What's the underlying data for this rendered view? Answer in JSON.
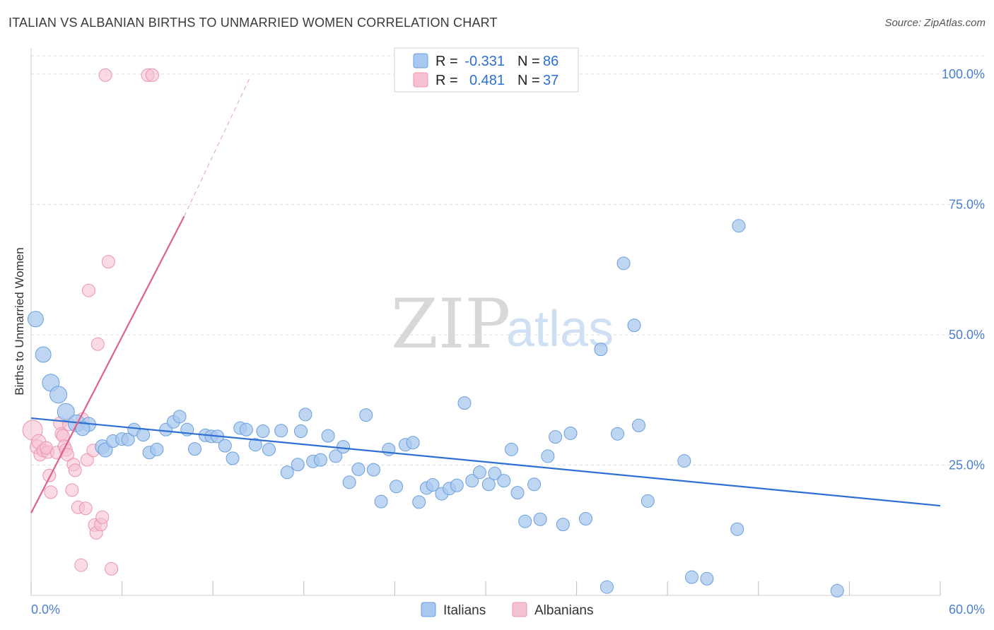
{
  "title": "ITALIAN VS ALBANIAN BIRTHS TO UNMARRIED WOMEN CORRELATION CHART",
  "source": "Source: ZipAtlas.com",
  "watermark": {
    "zip": "ZIP",
    "atlas": "atlas"
  },
  "colors": {
    "italians_fill": "#a9c8ef",
    "italians_stroke": "#6a9fdf",
    "italians_line": "#2d6fd2",
    "albanians_fill": "#f6c2d2",
    "albanians_stroke": "#ec94b0",
    "albanians_line": "#e0608a",
    "tick_text": "#4a7fd0",
    "grid": "#dddddd"
  },
  "legend": {
    "rows": [
      {
        "r_label": "R =",
        "r_value": "-0.331",
        "n_label": "N =",
        "n_value": "86"
      },
      {
        "r_label": "R =",
        "r_value": "0.481",
        "n_label": "N =",
        "n_value": "37"
      }
    ]
  },
  "chart_data": {
    "type": "scatter",
    "xlabel": "",
    "ylabel": "Births to Unmarried Women",
    "xlim": [
      0,
      60
    ],
    "ylim": [
      0,
      105
    ],
    "x_tick_labels": [
      "0.0%",
      "60.0%"
    ],
    "y_ticks": [
      25,
      50,
      75,
      100
    ],
    "y_tick_labels": [
      "25.0%",
      "50.0%",
      "75.0%",
      "100.0%"
    ],
    "grid": true,
    "legend_position": "top-center",
    "series": [
      {
        "name": "Italians",
        "trend": {
          "x0": 0,
          "y0": 34.0,
          "x1": 60,
          "y1": 17.2
        },
        "points": [
          [
            0.3,
            53.0,
            11
          ],
          [
            0.8,
            46.2,
            11
          ],
          [
            1.3,
            40.8,
            12
          ],
          [
            1.8,
            38.5,
            12
          ],
          [
            2.3,
            35.2,
            12
          ],
          [
            3.0,
            33.0,
            12
          ],
          [
            3.8,
            32.8,
            10
          ],
          [
            3.4,
            32.0,
            10
          ],
          [
            4.7,
            28.5,
            10
          ],
          [
            4.9,
            27.9,
            10
          ],
          [
            5.4,
            29.6,
            9
          ],
          [
            6.0,
            30.0,
            9
          ],
          [
            6.4,
            29.9,
            9
          ],
          [
            6.8,
            31.8,
            9
          ],
          [
            7.4,
            30.8,
            9
          ],
          [
            7.8,
            27.4,
            9
          ],
          [
            8.3,
            28.0,
            9
          ],
          [
            8.9,
            31.8,
            9
          ],
          [
            9.4,
            33.3,
            9
          ],
          [
            9.8,
            34.3,
            9
          ],
          [
            10.3,
            31.8,
            9
          ],
          [
            10.8,
            28.1,
            9
          ],
          [
            11.5,
            30.7,
            9
          ],
          [
            11.9,
            30.5,
            9
          ],
          [
            12.3,
            30.5,
            9
          ],
          [
            12.8,
            28.7,
            9
          ],
          [
            13.3,
            26.3,
            9
          ],
          [
            13.8,
            32.1,
            9
          ],
          [
            14.2,
            31.8,
            9
          ],
          [
            14.8,
            28.9,
            9
          ],
          [
            15.3,
            31.5,
            9
          ],
          [
            15.7,
            28.0,
            9
          ],
          [
            16.5,
            31.6,
            9
          ],
          [
            16.9,
            23.6,
            9
          ],
          [
            17.6,
            25.1,
            9
          ],
          [
            17.8,
            31.5,
            9
          ],
          [
            18.1,
            34.7,
            9
          ],
          [
            18.6,
            25.7,
            9
          ],
          [
            19.1,
            26.0,
            9
          ],
          [
            19.6,
            30.6,
            9
          ],
          [
            20.1,
            26.7,
            9
          ],
          [
            20.6,
            28.5,
            9
          ],
          [
            21.0,
            21.7,
            9
          ],
          [
            21.6,
            24.2,
            9
          ],
          [
            22.1,
            34.6,
            9
          ],
          [
            22.6,
            24.1,
            9
          ],
          [
            23.1,
            18.0,
            9
          ],
          [
            23.6,
            28.0,
            9
          ],
          [
            24.1,
            20.9,
            9
          ],
          [
            24.7,
            28.9,
            9
          ],
          [
            25.2,
            29.3,
            9
          ],
          [
            25.6,
            17.9,
            9
          ],
          [
            26.1,
            20.6,
            9
          ],
          [
            26.5,
            21.2,
            9
          ],
          [
            27.1,
            19.5,
            9
          ],
          [
            27.6,
            20.5,
            9
          ],
          [
            28.1,
            21.1,
            9
          ],
          [
            28.6,
            36.9,
            9
          ],
          [
            29.1,
            22.0,
            9
          ],
          [
            29.6,
            23.6,
            9
          ],
          [
            30.2,
            21.3,
            9
          ],
          [
            30.6,
            23.4,
            9
          ],
          [
            31.2,
            22.0,
            9
          ],
          [
            31.7,
            28.0,
            9
          ],
          [
            32.1,
            19.7,
            9
          ],
          [
            32.6,
            14.2,
            9
          ],
          [
            33.2,
            21.3,
            9
          ],
          [
            33.6,
            14.6,
            9
          ],
          [
            34.1,
            26.7,
            9
          ],
          [
            34.6,
            30.4,
            9
          ],
          [
            35.1,
            13.6,
            9
          ],
          [
            35.6,
            31.1,
            9
          ],
          [
            36.6,
            14.7,
            9
          ],
          [
            37.6,
            47.2,
            9
          ],
          [
            38.0,
            1.6,
            9
          ],
          [
            38.7,
            31.0,
            9
          ],
          [
            39.1,
            63.7,
            9
          ],
          [
            39.8,
            51.8,
            9
          ],
          [
            40.1,
            32.6,
            9
          ],
          [
            40.7,
            18.1,
            9
          ],
          [
            43.1,
            25.8,
            9
          ],
          [
            43.6,
            3.5,
            9
          ],
          [
            44.6,
            3.2,
            9
          ],
          [
            46.6,
            12.7,
            9
          ],
          [
            46.7,
            70.9,
            9
          ],
          [
            53.2,
            0.9,
            9
          ]
        ]
      },
      {
        "name": "Albanians",
        "trend": {
          "x0": 0,
          "y0": 15.8,
          "x1": 10.1,
          "y1": 72.7
        },
        "trend_dashed_to": {
          "x": 14.5,
          "y": 99.7
        },
        "points": [
          [
            0.1,
            31.7,
            14
          ],
          [
            0.4,
            28.5,
            10
          ],
          [
            0.5,
            29.5,
            10
          ],
          [
            0.6,
            27.0,
            9
          ],
          [
            0.8,
            27.8,
            9
          ],
          [
            1.1,
            27.5,
            9
          ],
          [
            1.0,
            28.3,
            9
          ],
          [
            1.2,
            23.0,
            9
          ],
          [
            1.3,
            19.8,
            9
          ],
          [
            1.7,
            27.4,
            9
          ],
          [
            1.9,
            33.0,
            9
          ],
          [
            2.0,
            31.0,
            9
          ],
          [
            2.1,
            30.6,
            9
          ],
          [
            2.2,
            28.6,
            9
          ],
          [
            2.3,
            27.9,
            9
          ],
          [
            2.4,
            27.0,
            9
          ],
          [
            2.5,
            32.8,
            9
          ],
          [
            2.7,
            20.2,
            9
          ],
          [
            2.8,
            25.1,
            9
          ],
          [
            2.9,
            24.0,
            9
          ],
          [
            3.1,
            16.9,
            9
          ],
          [
            3.3,
            5.8,
            9
          ],
          [
            3.4,
            33.8,
            9
          ],
          [
            3.6,
            16.7,
            9
          ],
          [
            3.7,
            26.0,
            9
          ],
          [
            3.8,
            58.5,
            9
          ],
          [
            4.1,
            27.8,
            9
          ],
          [
            4.2,
            13.5,
            9
          ],
          [
            4.3,
            12.0,
            9
          ],
          [
            4.4,
            48.2,
            9
          ],
          [
            4.6,
            13.6,
            9
          ],
          [
            4.7,
            15.0,
            9
          ],
          [
            4.9,
            99.8,
            9
          ],
          [
            5.1,
            64.0,
            9
          ],
          [
            5.3,
            5.1,
            9
          ],
          [
            7.7,
            99.8,
            9
          ],
          [
            8.0,
            99.8,
            9
          ]
        ]
      }
    ]
  },
  "bottom_legend": {
    "items": [
      {
        "label": "Italians"
      },
      {
        "label": "Albanians"
      }
    ]
  }
}
